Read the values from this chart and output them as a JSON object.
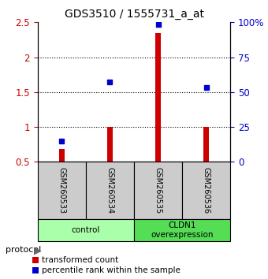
{
  "title": "GDS3510 / 1555731_a_at",
  "samples": [
    "GSM260533",
    "GSM260534",
    "GSM260535",
    "GSM260536"
  ],
  "red_bars": [
    0.68,
    1.0,
    2.35,
    1.0
  ],
  "blue_dots": [
    0.8,
    1.65,
    2.47,
    1.57
  ],
  "red_bar_bottom": 0.5,
  "ylim": [
    0.5,
    2.5
  ],
  "yticks_left": [
    0.5,
    1.0,
    1.5,
    2.0,
    2.5
  ],
  "yticks_right": [
    0,
    25,
    50,
    75,
    100
  ],
  "ytick_labels_right": [
    "0",
    "25",
    "50",
    "75",
    "100%"
  ],
  "left_tick_color": "#cc0000",
  "right_tick_color": "#0000cc",
  "dot_color": "#0000cc",
  "bar_color": "#cc0000",
  "groups": [
    {
      "label": "control",
      "samples": [
        0,
        1
      ],
      "color": "#aaffaa"
    },
    {
      "label": "CLDN1\noverexpression",
      "samples": [
        2,
        3
      ],
      "color": "#55dd55"
    }
  ],
  "protocol_label": "protocol",
  "legend_items": [
    {
      "color": "#cc0000",
      "label": "transformed count"
    },
    {
      "color": "#0000cc",
      "label": "percentile rank within the sample"
    }
  ],
  "grid_dotted_values": [
    1.0,
    1.5,
    2.0
  ],
  "sample_box_color": "#cccccc",
  "sample_box_edge": "#000000",
  "bar_width": 0.12
}
